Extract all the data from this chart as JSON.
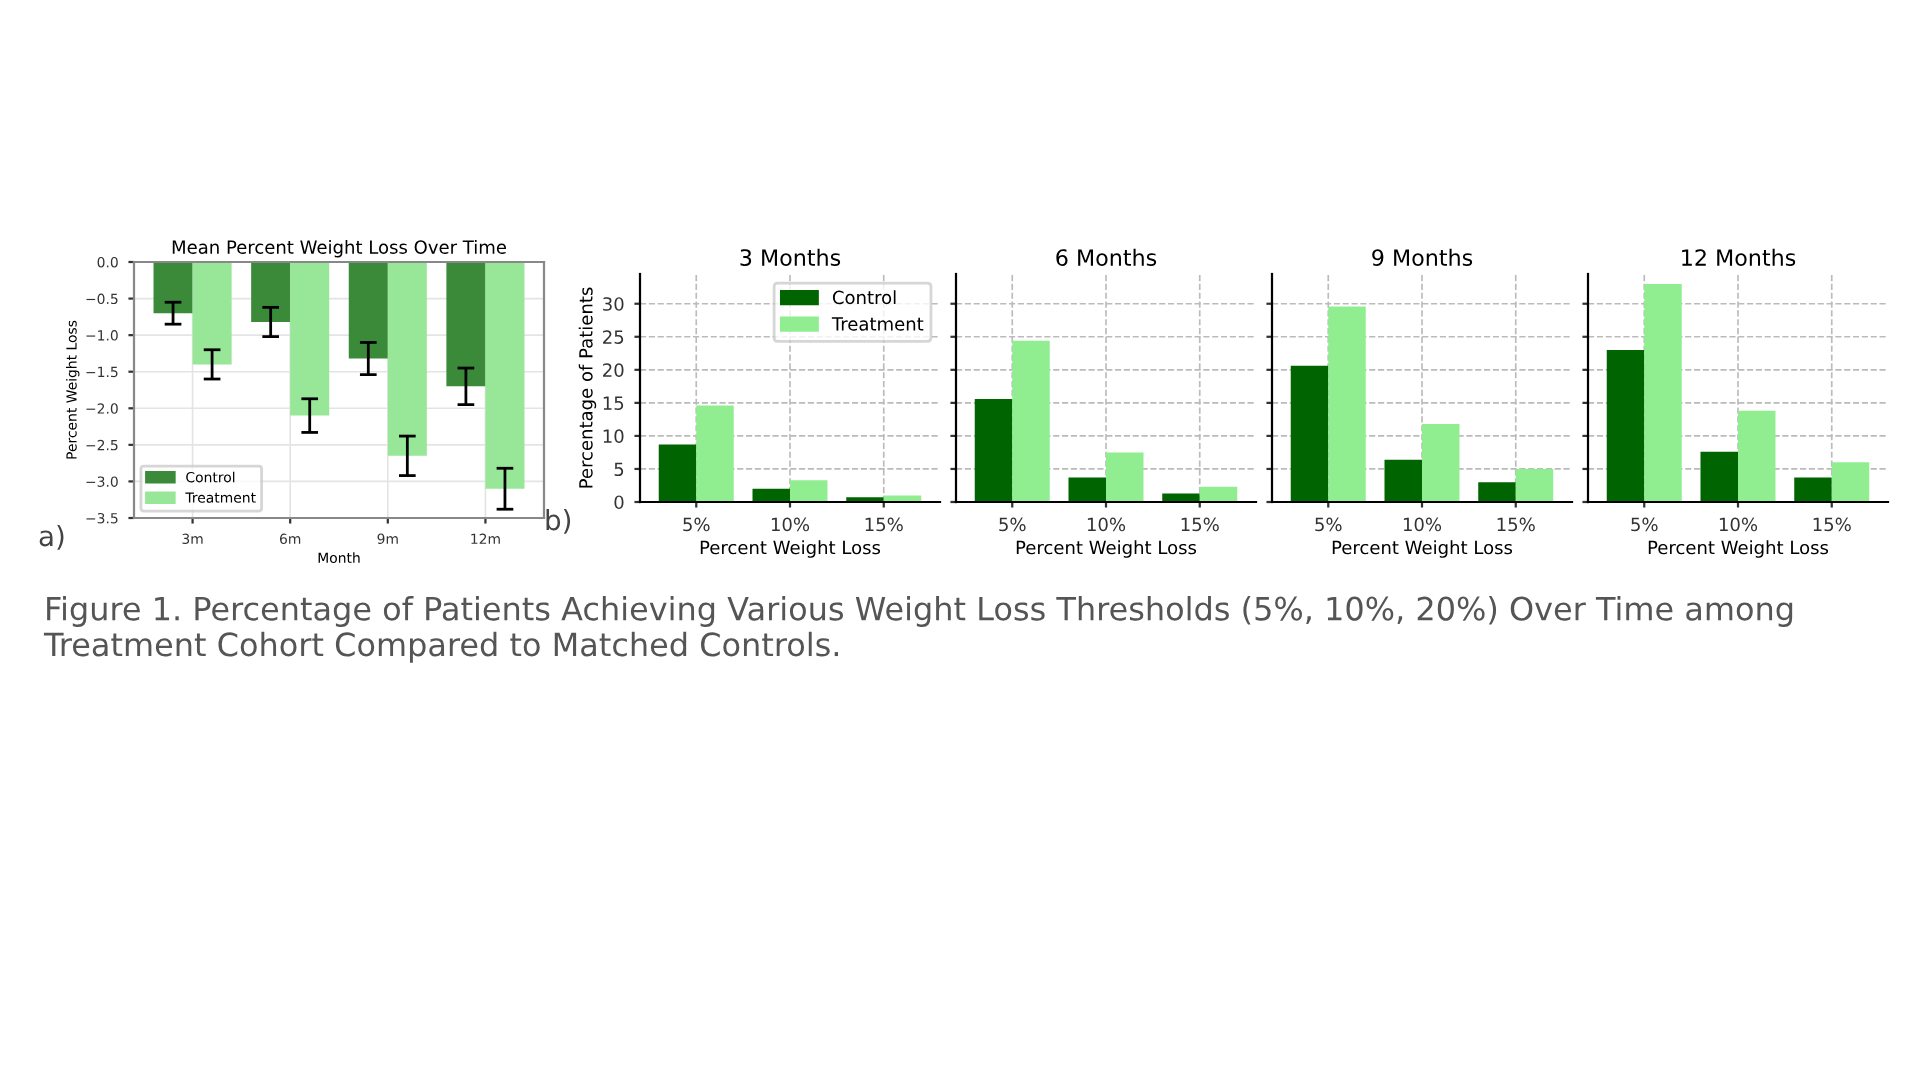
{
  "chart_data": [
    {
      "type": "bar",
      "title": "Mean Percent Weight Loss Over Time",
      "xlabel": "Month",
      "ylabel": "Percent Weight Loss",
      "categories": [
        "3m",
        "6m",
        "9m",
        "12m"
      ],
      "series": [
        {
          "name": "Control",
          "color": "#3a8a3a",
          "values": [
            -0.7,
            -0.82,
            -1.32,
            -1.7
          ],
          "errors": [
            0.15,
            0.2,
            0.22,
            0.25
          ]
        },
        {
          "name": "Treatment",
          "color": "#98e698",
          "values": [
            -1.4,
            -2.1,
            -2.65,
            -3.1
          ],
          "errors": [
            0.2,
            0.23,
            0.27,
            0.28
          ]
        }
      ],
      "ylim": [
        -3.5,
        0
      ],
      "yticks": [
        {
          "value": 0,
          "label": "0.0"
        },
        {
          "value": -0.5,
          "label": "−0.5"
        },
        {
          "value": -1.0,
          "label": "−1.0"
        },
        {
          "value": -1.5,
          "label": "−1.5"
        },
        {
          "value": -2.0,
          "label": "−2.0"
        },
        {
          "value": -2.5,
          "label": "−2.5"
        },
        {
          "value": -3.0,
          "label": "−3.0"
        },
        {
          "value": -3.5,
          "label": "−3.5"
        }
      ],
      "grid": true,
      "legend": "bottom left",
      "annotations": [
        "a)",
        "Figure 1. Percentage of Patients Achieving Various Weight Loss Thresholds (5%, 10%, 20%) Over Time among Treatment Cohort Compared to Matched Controls."
      ]
    },
    {
      "type": "bar",
      "title": "3 Months",
      "xlabel": "Percent Weight Loss",
      "ylabel": "Percentage of Patients",
      "categories": [
        "5%",
        "10%",
        "15%"
      ],
      "series": [
        {
          "name": "Control",
          "color": "#006400",
          "values": [
            8.7,
            2.0,
            0.7
          ]
        },
        {
          "name": "Treatment",
          "color": "#90ee90",
          "values": [
            14.6,
            3.3,
            1.0
          ]
        }
      ],
      "ylim": [
        0,
        34.5
      ],
      "yticks": [
        0,
        5,
        10,
        15,
        20,
        25,
        30
      ],
      "grid": true,
      "legend": "top right",
      "annotations": [
        "b)"
      ]
    },
    {
      "type": "bar",
      "title": "6 Months",
      "xlabel": "Percent Weight Loss",
      "categories": [
        "5%",
        "10%",
        "15%"
      ],
      "series": [
        {
          "color": "#006400",
          "values": [
            15.6,
            3.7,
            1.3
          ]
        },
        {
          "color": "#90ee90",
          "values": [
            24.4,
            7.5,
            2.3
          ]
        }
      ],
      "ylim": [
        0,
        34.5
      ],
      "yticks": [
        0,
        5,
        10,
        15,
        20,
        25,
        30
      ],
      "grid": true,
      "tick_labels": "x"
    },
    {
      "type": "bar",
      "title": "9 Months",
      "xlabel": "Percent Weight Loss",
      "categories": [
        "5%",
        "10%",
        "15%"
      ],
      "series": [
        {
          "color": "#006400",
          "values": [
            20.6,
            6.4,
            3.0
          ]
        },
        {
          "color": "#90ee90",
          "values": [
            29.6,
            11.8,
            5.0
          ]
        }
      ],
      "ylim": [
        0,
        34.5
      ],
      "yticks": [
        0,
        5,
        10,
        15,
        20,
        25,
        30
      ],
      "grid": true,
      "tick_labels": "x"
    },
    {
      "type": "bar",
      "title": "12 Months",
      "xlabel": "Percent Weight Loss",
      "categories": [
        "5%",
        "10%",
        "15%"
      ],
      "series": [
        {
          "color": "#006400",
          "values": [
            23.0,
            7.6,
            3.7
          ]
        },
        {
          "color": "#90ee90",
          "values": [
            33.0,
            13.8,
            6.0
          ]
        }
      ],
      "ylim": [
        0,
        34.5
      ],
      "yticks": [
        0,
        5,
        10,
        15,
        20,
        25,
        30
      ],
      "grid": true,
      "tick_labels": "x"
    }
  ]
}
